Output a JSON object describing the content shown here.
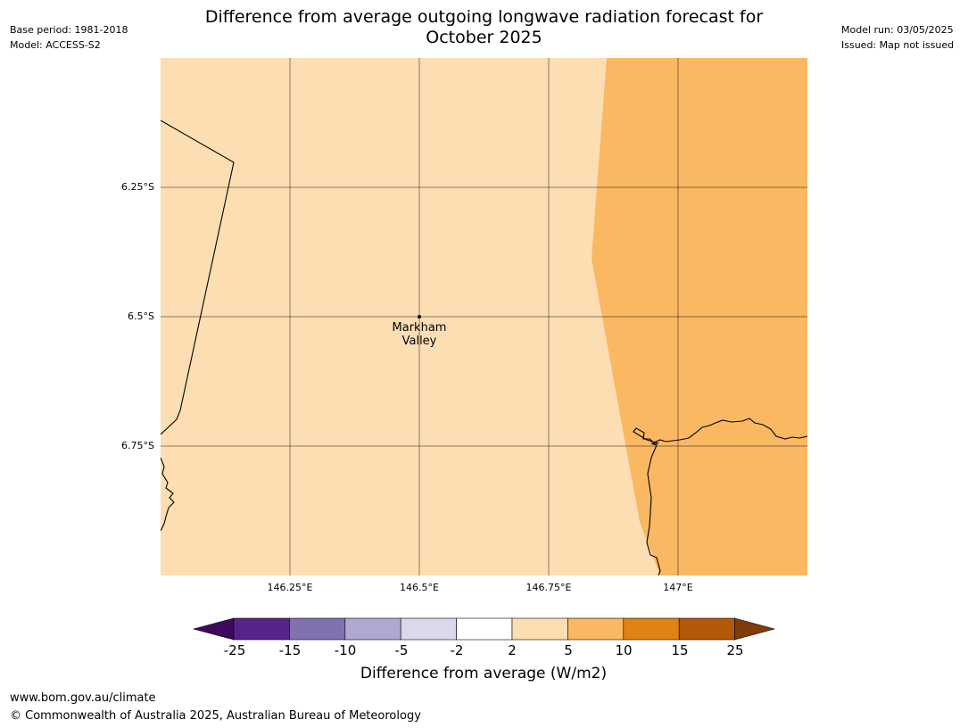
{
  "header": {
    "title_line1": "Difference from average outgoing longwave radiation forecast for",
    "title_line2": "October 2025",
    "base_period": "Base period: 1981-2018",
    "model": "Model: ACCESS-S2",
    "model_run": "Model run: 03/05/2025",
    "issued": "Issued: Map not issued"
  },
  "map": {
    "background_color": "#fddeb3",
    "high_anomaly_color": "#fab862",
    "x_ticks": [
      "146.25°E",
      "146.5°E",
      "146.75°E",
      "147°E"
    ],
    "y_ticks": [
      "6.25°S",
      "6.5°S",
      "6.75°S"
    ],
    "place": {
      "name_line1": "Markham",
      "name_line2": "Valley"
    }
  },
  "colorbar": {
    "label": "Difference from average (W/m2)",
    "ticks": [
      "-25",
      "-15",
      "-10",
      "-5",
      "-2",
      "2",
      "5",
      "10",
      "15",
      "25"
    ],
    "colors": [
      "#3f0a5b",
      "#58228b",
      "#8171ae",
      "#b0a7d2",
      "#d9d9eb",
      "#ffffff",
      "#fddeb3",
      "#fab862",
      "#e08214",
      "#b35806",
      "#7f3b08"
    ]
  },
  "footer": {
    "url": "www.bom.gov.au/climate",
    "copyright": "© Commonwealth of Australia 2025, Australian Bureau of Meteorology"
  }
}
